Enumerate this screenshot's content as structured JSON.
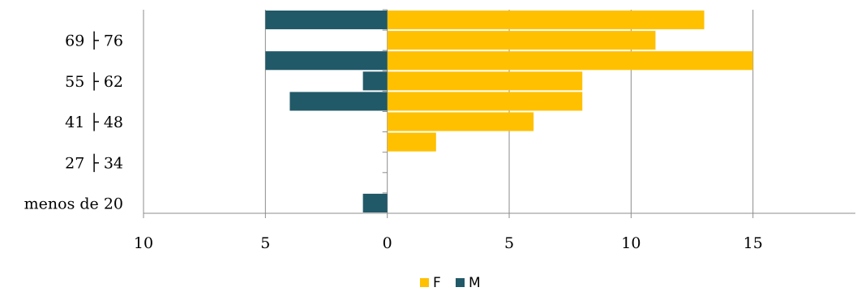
{
  "chart_data": {
    "type": "bar",
    "orientation": "horizontal",
    "stacking": "diverging",
    "categories": [
      "menos de 20",
      "",
      "27 ├ 34",
      "",
      "41 ├ 48",
      "",
      "55 ├ 62",
      "",
      "69 ├ 76",
      ""
    ],
    "series": [
      {
        "name": "F",
        "color": "#FFC000",
        "values": [
          0,
          0,
          0,
          2,
          6,
          8,
          8,
          15,
          11,
          13
        ]
      },
      {
        "name": "M",
        "color": "#215968",
        "values": [
          1,
          0,
          0,
          0,
          0,
          4,
          1,
          5,
          0,
          5
        ]
      }
    ],
    "x_ticks": [
      {
        "value": -10,
        "label": "10"
      },
      {
        "value": -5,
        "label": "5"
      },
      {
        "value": 0,
        "label": "0"
      },
      {
        "value": 5,
        "label": "5"
      },
      {
        "value": 10,
        "label": "10"
      },
      {
        "value": 15,
        "label": "15"
      }
    ],
    "xlim": [
      -10,
      19.2
    ],
    "grid": true,
    "legend": {
      "position": "bottom"
    }
  }
}
